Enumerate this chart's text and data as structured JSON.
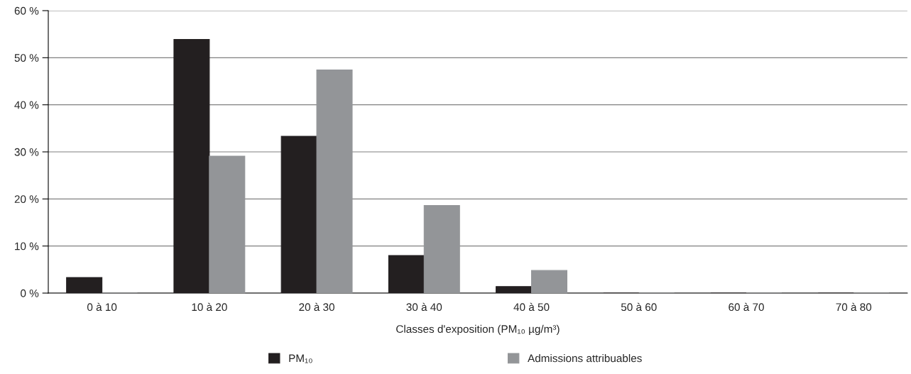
{
  "chart_data": {
    "type": "bar",
    "xlabel": "Classes d'exposition (PM₁₀ µg/m³)",
    "categories": [
      "0 à 10",
      "10 à 20",
      "20 à 30",
      "30 à 40",
      "40 à 50",
      "50 à 60",
      "60 à 70",
      "70 à 80"
    ],
    "series": [
      {
        "name": "PM₁₀",
        "color": "#231f20",
        "values": [
          3.3,
          53.9,
          33.3,
          8.0,
          1.4,
          0,
          0,
          0
        ]
      },
      {
        "name": "Admissions attribuables",
        "color": "#939598",
        "values": [
          0,
          29.1,
          47.4,
          18.6,
          4.8,
          0,
          0,
          0
        ]
      }
    ],
    "ylim": [
      0,
      60
    ],
    "yticks": [
      {
        "value": 0,
        "label": "0 %"
      },
      {
        "value": 10,
        "label": "10 %"
      },
      {
        "value": 20,
        "label": "20 %"
      },
      {
        "value": 30,
        "label": "30 %"
      },
      {
        "value": 40,
        "label": "40 %"
      },
      {
        "value": 50,
        "label": "50 %"
      },
      {
        "value": 60,
        "label": "60 %"
      }
    ],
    "grid": "y",
    "legend": "bottom"
  }
}
